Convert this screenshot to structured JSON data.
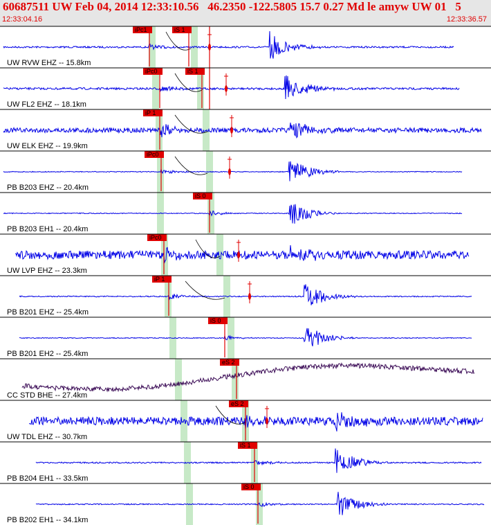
{
  "header": {
    "title": "60687511 UW Feb 04, 2014 12:33:10.56   46.2350 -122.5805 15.7 0.27 Md le amyw UW 01   5",
    "time_start": "12:33:04.16",
    "time_end": "12:33:36.57"
  },
  "colors": {
    "header_bg": "#e6e6e6",
    "header_text": "#e00000",
    "trace": "#0000e6",
    "trace_dark": "#3a0a55",
    "pick_red": "#e00000",
    "theory_green": "#c7e9c7",
    "label_bg": "#e00000"
  },
  "chart_data": {
    "type": "line",
    "title": "60687511 UW Feb 04, 2014 12:33:10.56   46.2350 -122.5805 15.7 0.27 Md le amyw UW 01   5",
    "x_range": [
      "12:33:04.16",
      "12:33:36.57"
    ],
    "channels": [
      {
        "label": "UW RVW EHZ -- 15.8km",
        "picks": [
          {
            "label": "iPc1",
            "phase": "P"
          },
          {
            "label": "iS 1",
            "phase": "S"
          }
        ]
      },
      {
        "label": "UW FL2 EHZ -- 18.1km",
        "picks": [
          {
            "label": "iPc0",
            "phase": "P"
          },
          {
            "label": "iS 1",
            "phase": "S"
          }
        ]
      },
      {
        "label": "UW ELK EHZ -- 19.9km",
        "picks": [
          {
            "label": "iP 1",
            "phase": "P"
          }
        ]
      },
      {
        "label": "PB B203 EHZ -- 20.4km",
        "picks": [
          {
            "label": "iPc0",
            "phase": "P"
          }
        ]
      },
      {
        "label": "PB B203 EH1 -- 20.4km",
        "picks": [
          {
            "label": "iS 0",
            "phase": "S"
          }
        ]
      },
      {
        "label": "UW LVP EHZ -- 23.3km",
        "picks": [
          {
            "label": "iPc0",
            "phase": "P"
          }
        ]
      },
      {
        "label": "PB B201 EHZ -- 25.4km",
        "picks": [
          {
            "label": "iP 1",
            "phase": "P"
          }
        ]
      },
      {
        "label": "PB B201 EH2 -- 25.4km",
        "picks": [
          {
            "label": "iS 0",
            "phase": "S"
          }
        ]
      },
      {
        "label": "CC STD BHE -- 27.4km",
        "picks": [
          {
            "label": "eS 2",
            "phase": "S"
          }
        ]
      },
      {
        "label": "UW TDL EHZ -- 30.7km",
        "picks": [
          {
            "label": "eS 2",
            "phase": "S"
          }
        ]
      },
      {
        "label": "PB B204 EH1 -- 33.5km",
        "picks": [
          {
            "label": "iS 1",
            "phase": "S"
          }
        ]
      },
      {
        "label": "PB B202 EH1 -- 34.1km",
        "picks": [
          {
            "label": "iS 0",
            "phase": "S"
          }
        ]
      }
    ]
  }
}
